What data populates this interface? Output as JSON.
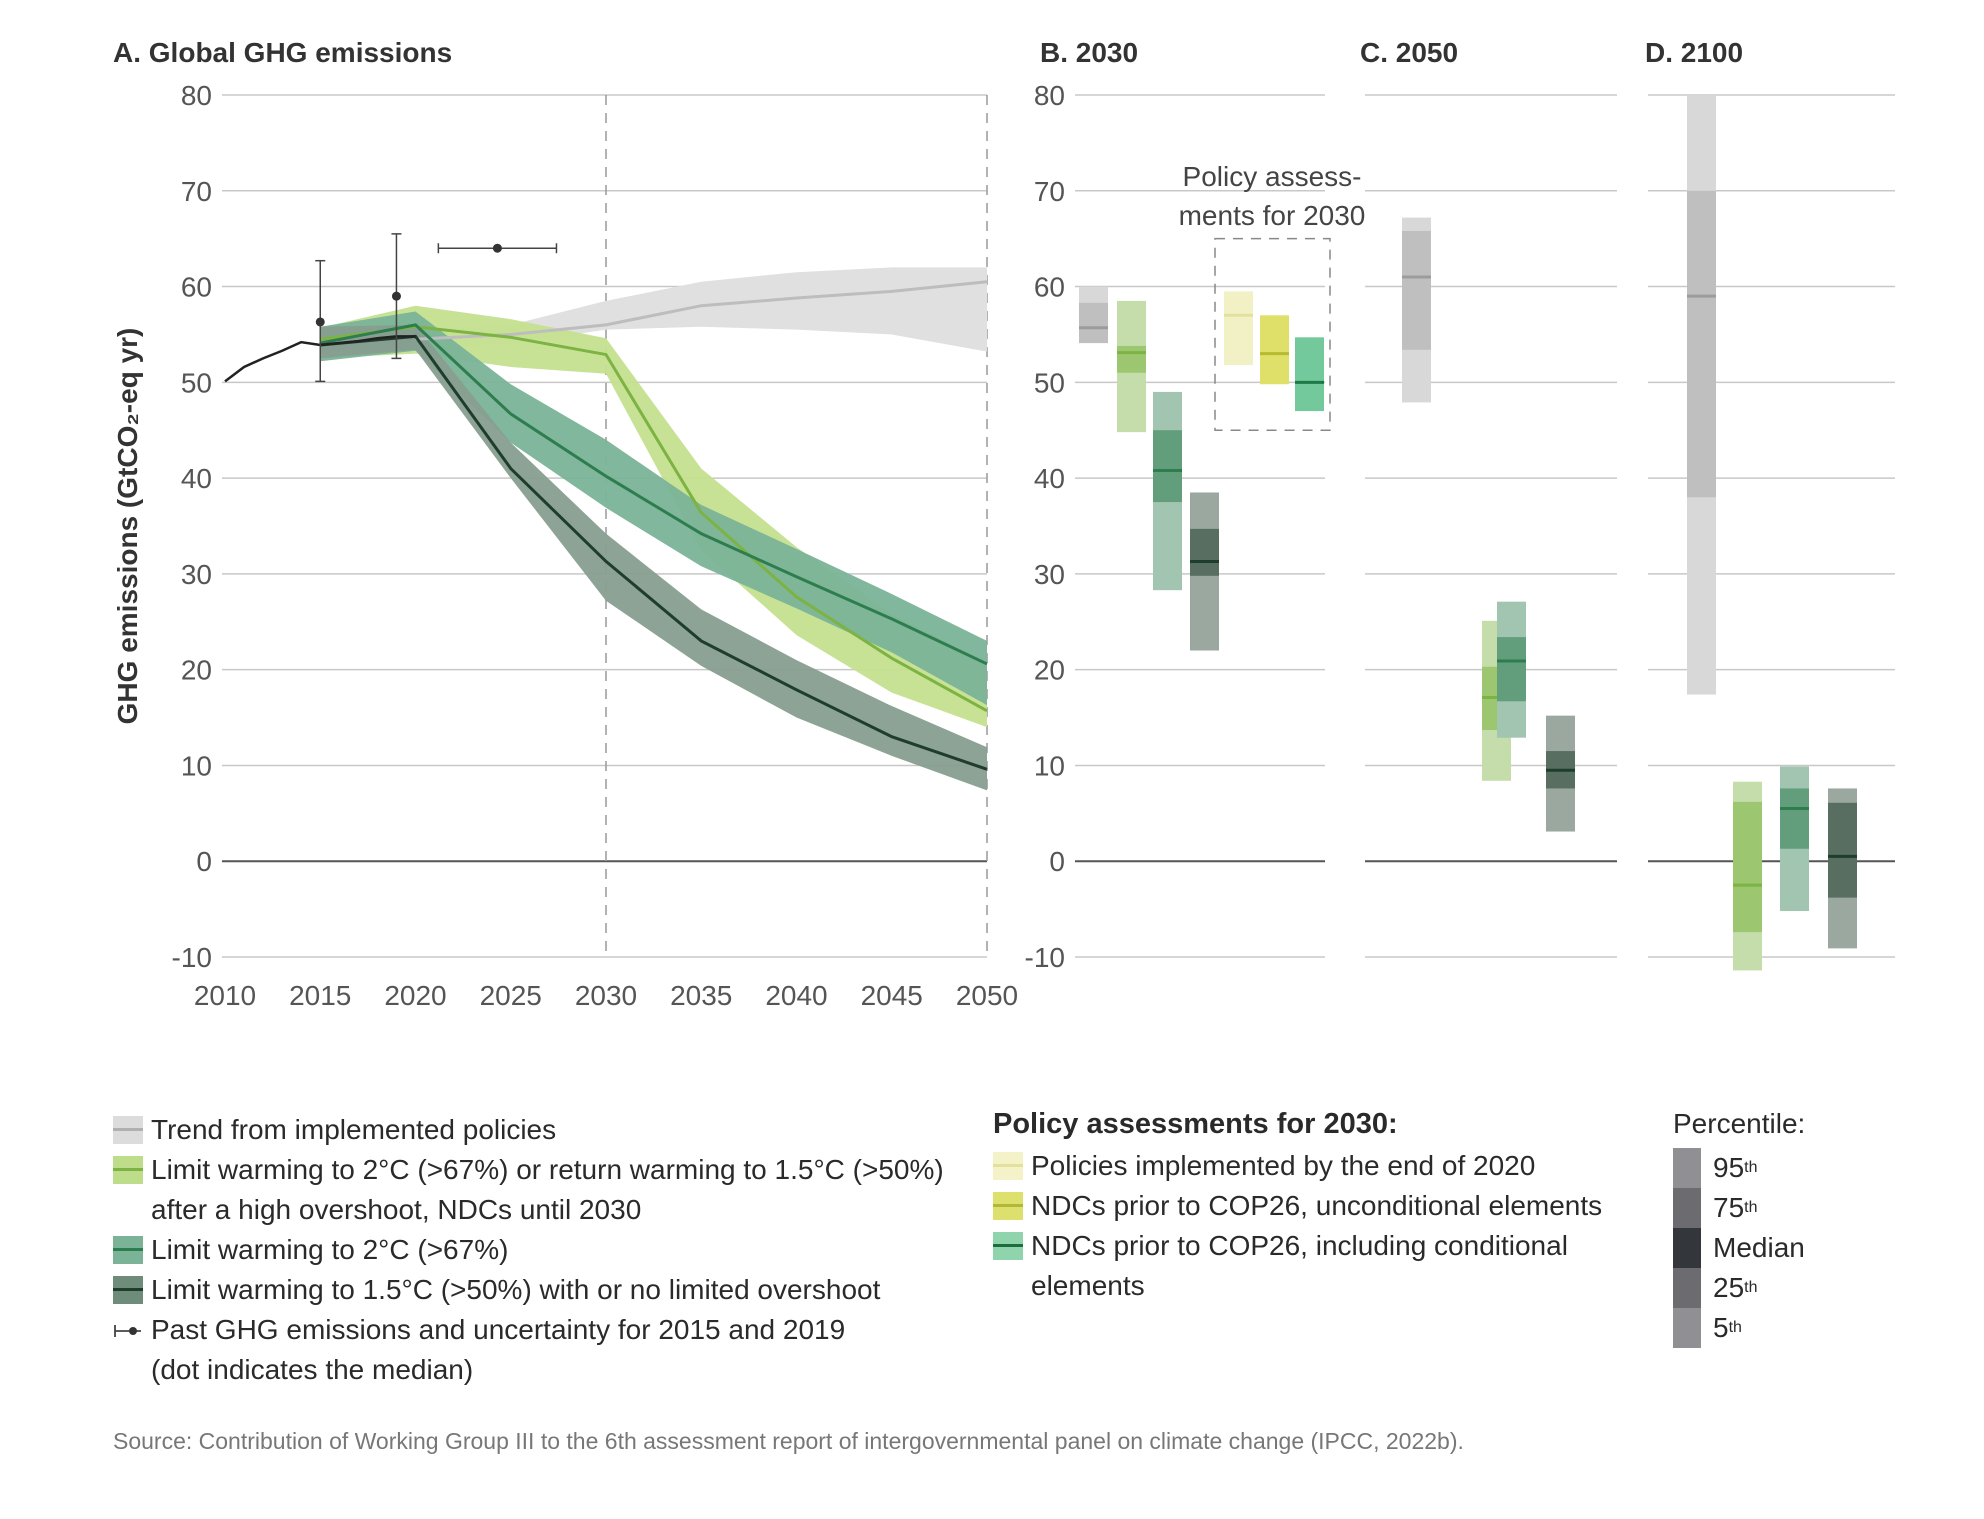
{
  "chart_data": [
    {
      "id": "A",
      "type": "area",
      "title": "A.  Global GHG emissions",
      "ylabel": "GHG emissions (GtCO₂-eq yr)",
      "ylim": [
        -10,
        80
      ],
      "yticks": [
        "80",
        "70",
        "60",
        "50",
        "40",
        "30",
        "20",
        "10",
        "0",
        "-10"
      ],
      "xticks": [
        "2010",
        "2015",
        "2020",
        "2025",
        "2030",
        "2035",
        "2040",
        "2045",
        "2050"
      ],
      "xlim": [
        2010,
        2050
      ],
      "historical": {
        "x": [
          2010,
          2011,
          2012,
          2013,
          2014,
          2015,
          2016,
          2017,
          2018,
          2019,
          2020
        ],
        "y": [
          50.1,
          51.6,
          52.5,
          53.3,
          54.2,
          53.9,
          54.1,
          54.3,
          54.6,
          54.8,
          54.8
        ]
      },
      "past_markers": [
        {
          "year": 2015,
          "median": 56.3,
          "low": 50.1,
          "high": 62.7
        },
        {
          "year": 2019,
          "median": 59.0,
          "low": 52.5,
          "high": 65.5
        }
      ],
      "policy_marker": {
        "year": 2024.3,
        "y": 64.0,
        "xmin": 2021.2,
        "xmax": 2027.4
      },
      "series": [
        {
          "name": "Trend from implemented policies",
          "color": "#bdbdbd",
          "band": "#e0e0e0",
          "x": [
            2020,
            2025,
            2030,
            2035,
            2040,
            2045,
            2050
          ],
          "median": [
            54.5,
            55.0,
            56.0,
            58.0,
            58.8,
            59.5,
            60.5
          ],
          "upper": [
            55.5,
            56.0,
            58.5,
            60.5,
            61.5,
            62.0,
            62.0
          ],
          "lower": [
            53.5,
            54.0,
            55.5,
            55.8,
            55.5,
            55.0,
            53.2
          ]
        },
        {
          "name": "Limit warming to 2°C (>67%) or return warming to 1.5°C (>50%) after a high overshoot, NDCs until 2030",
          "color": "#7cb342",
          "band": "#c5e08f",
          "x": [
            2015,
            2020,
            2025,
            2030,
            2035,
            2040,
            2045,
            2050
          ],
          "median": [
            54.5,
            55.8,
            54.7,
            52.9,
            36.4,
            27.6,
            21.2,
            15.7
          ],
          "upper": [
            55.7,
            58.0,
            56.6,
            54.6,
            41.0,
            32.8,
            25.8,
            20.7
          ],
          "lower": [
            52.5,
            53.0,
            51.6,
            50.9,
            32.5,
            23.6,
            17.6,
            14.0
          ]
        },
        {
          "name": "Limit warming to 2°C (>67%)",
          "color": "#2e7d4f",
          "band": "#7ab397",
          "x": [
            2015,
            2020,
            2025,
            2030,
            2035,
            2040,
            2045,
            2050
          ],
          "median": [
            54.1,
            56.0,
            46.7,
            40.2,
            34.2,
            29.7,
            25.3,
            20.6
          ],
          "upper": [
            55.8,
            57.4,
            49.8,
            44.0,
            37.2,
            32.6,
            27.9,
            23.0
          ],
          "lower": [
            52.2,
            53.3,
            43.7,
            36.9,
            30.8,
            26.4,
            21.8,
            16.3
          ]
        },
        {
          "name": "Limit warming to 1.5°C (>50%) with or no limited overshoot",
          "color": "#1f3d2c",
          "band": "#879e8f",
          "x": [
            2015,
            2020,
            2025,
            2030,
            2035,
            2040,
            2045,
            2050
          ],
          "median": [
            53.9,
            54.8,
            41.0,
            31.3,
            23.0,
            17.9,
            13.0,
            9.6
          ],
          "upper": [
            55.8,
            56.0,
            43.7,
            34.2,
            26.3,
            21.0,
            16.2,
            11.9
          ],
          "lower": [
            52.5,
            53.4,
            40.0,
            27.2,
            20.4,
            15.0,
            11.0,
            7.4
          ]
        }
      ]
    },
    {
      "id": "B",
      "type": "bar",
      "title": "B.  2030",
      "ylim": [
        -10,
        80
      ],
      "yticks": [
        "80",
        "70",
        "60",
        "50",
        "40",
        "30",
        "20",
        "10",
        "0",
        "-10"
      ],
      "annotation": "Policy assess-\nments for 2030",
      "boxes": [
        {
          "name": "Trend from implemented policies",
          "p5": 54.1,
          "p25": 54.1,
          "median": 55.7,
          "p75": 58.3,
          "p95": 60.0,
          "color": "#a9a9a9"
        },
        {
          "name": "2°C (>67%) or 1.5°C (>50%) after high overshoot, NDCs until 2030",
          "p5": 44.8,
          "p25": 51.0,
          "median": 53.1,
          "p75": 53.8,
          "p95": 58.5,
          "color": "#7cb342"
        },
        {
          "name": "2°C (>67%)",
          "p5": 28.3,
          "p25": 37.5,
          "median": 40.8,
          "p75": 45.0,
          "p95": 49.0,
          "color": "#2e7d4f"
        },
        {
          "name": "1.5°C (>50%)",
          "p5": 22.0,
          "p25": 29.8,
          "median": 31.3,
          "p75": 34.7,
          "p95": 38.5,
          "color": "#1f3d2c"
        },
        {
          "name": "Policies implemented by the end of 2020",
          "p5": 51.8,
          "p25": 51.8,
          "median": 57.0,
          "p75": 59.5,
          "p95": 59.5,
          "color": "#f2f1c6"
        },
        {
          "name": "NDCs prior to COP26, unconditional elements",
          "p5": 49.8,
          "p25": 49.8,
          "median": 53.0,
          "p75": 57.0,
          "p95": 57.0,
          "color": "#dee06a"
        },
        {
          "name": "NDCs prior to COP26, including conditional elements",
          "p5": 47.0,
          "p25": 47.0,
          "median": 50.0,
          "p75": 54.7,
          "p95": 54.7,
          "color": "#73c99c"
        }
      ]
    },
    {
      "id": "C",
      "type": "bar",
      "title": "C.  2050",
      "ylim": [
        -10,
        80
      ],
      "boxes": [
        {
          "name": "Trend from implemented policies",
          "p5": 47.9,
          "p25": 53.4,
          "median": 61.0,
          "p75": 65.8,
          "p95": 67.2,
          "color": "#a9a9a9"
        },
        {
          "name": "2°C (>67%) or 1.5°C (>50%) after high overshoot, NDCs until 2030",
          "p5": 8.4,
          "p25": 13.7,
          "median": 17.1,
          "p75": 20.3,
          "p95": 25.1,
          "color": "#7cb342"
        },
        {
          "name": "2°C (>67%)",
          "p5": 12.9,
          "p25": 16.7,
          "median": 20.9,
          "p75": 23.4,
          "p95": 27.1,
          "color": "#2e7d4f"
        },
        {
          "name": "1.5°C (>50%)",
          "p5": 3.1,
          "p25": 7.6,
          "median": 9.5,
          "p75": 11.5,
          "p95": 15.2,
          "color": "#1f3d2c"
        }
      ]
    },
    {
      "id": "D",
      "type": "bar",
      "title": "D.  2100",
      "ylim": [
        -10,
        80
      ],
      "boxes": [
        {
          "name": "Trend from implemented policies",
          "p5": 17.4,
          "p25": 38.0,
          "median": 59.0,
          "p75": 70.0,
          "p95": 80.0,
          "color": "#a9a9a9"
        },
        {
          "name": "2°C (>67%) or 1.5°C (>50%) after high overshoot, NDCs until 2030",
          "p5": -11.4,
          "p25": -7.4,
          "median": -2.5,
          "p75": 6.2,
          "p95": 8.3,
          "color": "#7cb342"
        },
        {
          "name": "2°C (>67%)",
          "p5": -5.2,
          "p25": 1.3,
          "median": 5.5,
          "p75": 7.6,
          "p95": 9.9,
          "color": "#2e7d4f"
        },
        {
          "name": "1.5°C (>50%)",
          "p5": -9.1,
          "p25": -3.8,
          "median": 0.5,
          "p75": 6.1,
          "p95": 7.6,
          "color": "#1f3d2c"
        }
      ]
    }
  ],
  "legend": {
    "items": [
      {
        "label_1": "Trend from implemented policies",
        "label_2": "",
        "band": "#dcdcdc",
        "line": "#b0b0b0"
      },
      {
        "label_1": "Limit warming to 2°C (>67%) or return warming to 1.5°C (>50%)",
        "label_2": "after a high overshoot, NDCs until 2030",
        "band": "#bedd8a",
        "line": "#7cb342"
      },
      {
        "label_1": "Limit warming to 2°C (>67%)",
        "label_2": "",
        "band": "#7ab397",
        "line": "#2e7d4f"
      },
      {
        "label_1": "Limit warming to 1.5°C (>50%) with or no limited overshoot",
        "label_2": "",
        "band": "#6f8b79",
        "line": "#1f3d2c"
      }
    ],
    "past": {
      "label_1": "Past GHG emissions and uncertainty for 2015 and 2019",
      "label_2": "(dot indicates the median)"
    },
    "policy": {
      "title": "Policy assessments for 2030:",
      "items": [
        {
          "label_1": "Policies implemented by the end of 2020",
          "label_2": "",
          "band": "#f4f2c9",
          "line": "#e3e19a"
        },
        {
          "label_1": "NDCs prior to COP26, unconditional elements",
          "label_2": "",
          "band": "#dde06d",
          "line": "#b3b73a"
        },
        {
          "label_1": "NDCs prior to COP26, including conditional",
          "label_2": "elements",
          "band": "#8fd4ac",
          "line": "#1b6e3e"
        }
      ]
    },
    "percentile": {
      "title": "Percentile:",
      "items": [
        {
          "label": "95",
          "sup": "th",
          "shade": "#8f8f94"
        },
        {
          "label": "75",
          "sup": "th",
          "shade": "#6b6b70"
        },
        {
          "label": "Median",
          "sup": "",
          "shade": "#33363b"
        },
        {
          "label": "25",
          "sup": "th",
          "shade": "#6b6b70"
        },
        {
          "label": "5",
          "sup": "th",
          "shade": "#8f8f94"
        }
      ]
    }
  },
  "source": "Source: Contribution of Working Group III to the 6th assessment report of intergovernmental panel on climate change (IPCC, 2022b)."
}
